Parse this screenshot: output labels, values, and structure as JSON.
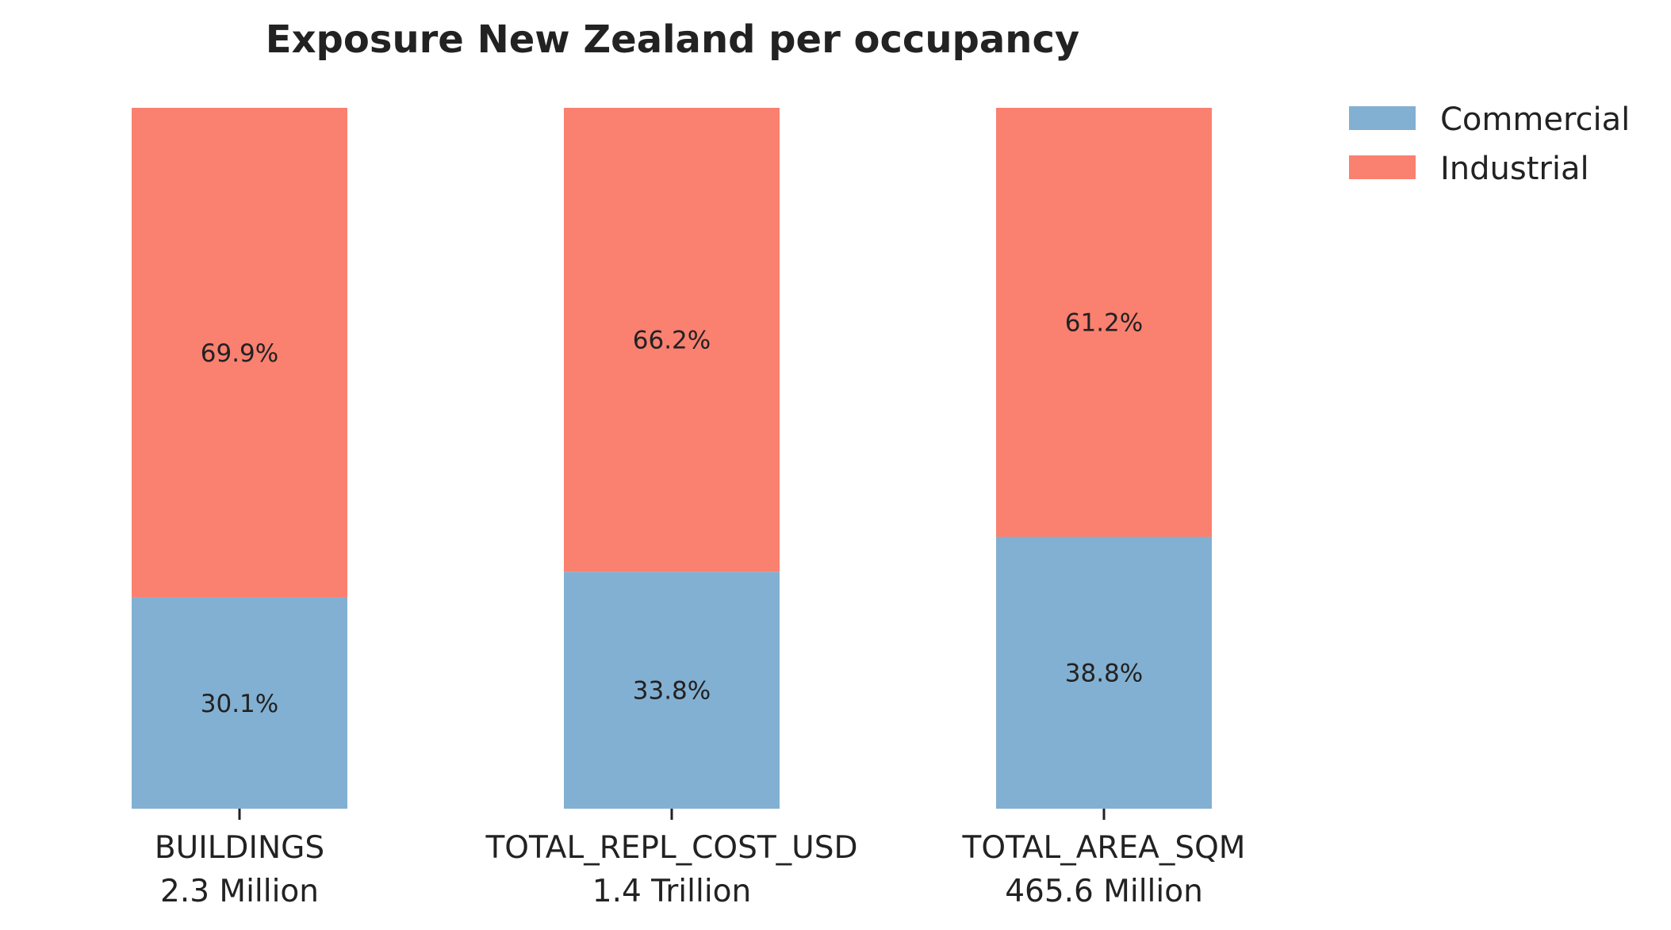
{
  "chart_data": {
    "type": "bar",
    "stacked": true,
    "normalized_percent": true,
    "title": "Exposure New Zealand per occupancy",
    "xlabel": "",
    "ylabel": "",
    "ylim": [
      0,
      100
    ],
    "grid": false,
    "legend_position": "top-right",
    "categories": [
      "BUILDINGS",
      "TOTAL_REPL_COST_USD",
      "TOTAL_AREA_SQM"
    ],
    "category_totals": [
      "2.3 Million",
      "1.4 Trillion",
      "465.6 Million"
    ],
    "series": [
      {
        "name": "Commercial",
        "color": "#82b0d2",
        "values": [
          30.1,
          33.8,
          38.8
        ],
        "labels": [
          "30.1%",
          "33.8%",
          "38.8%"
        ]
      },
      {
        "name": "Industrial",
        "color": "#fa8070",
        "values": [
          69.9,
          66.2,
          61.2
        ],
        "labels": [
          "69.9%",
          "66.2%",
          "61.2%"
        ]
      }
    ]
  }
}
